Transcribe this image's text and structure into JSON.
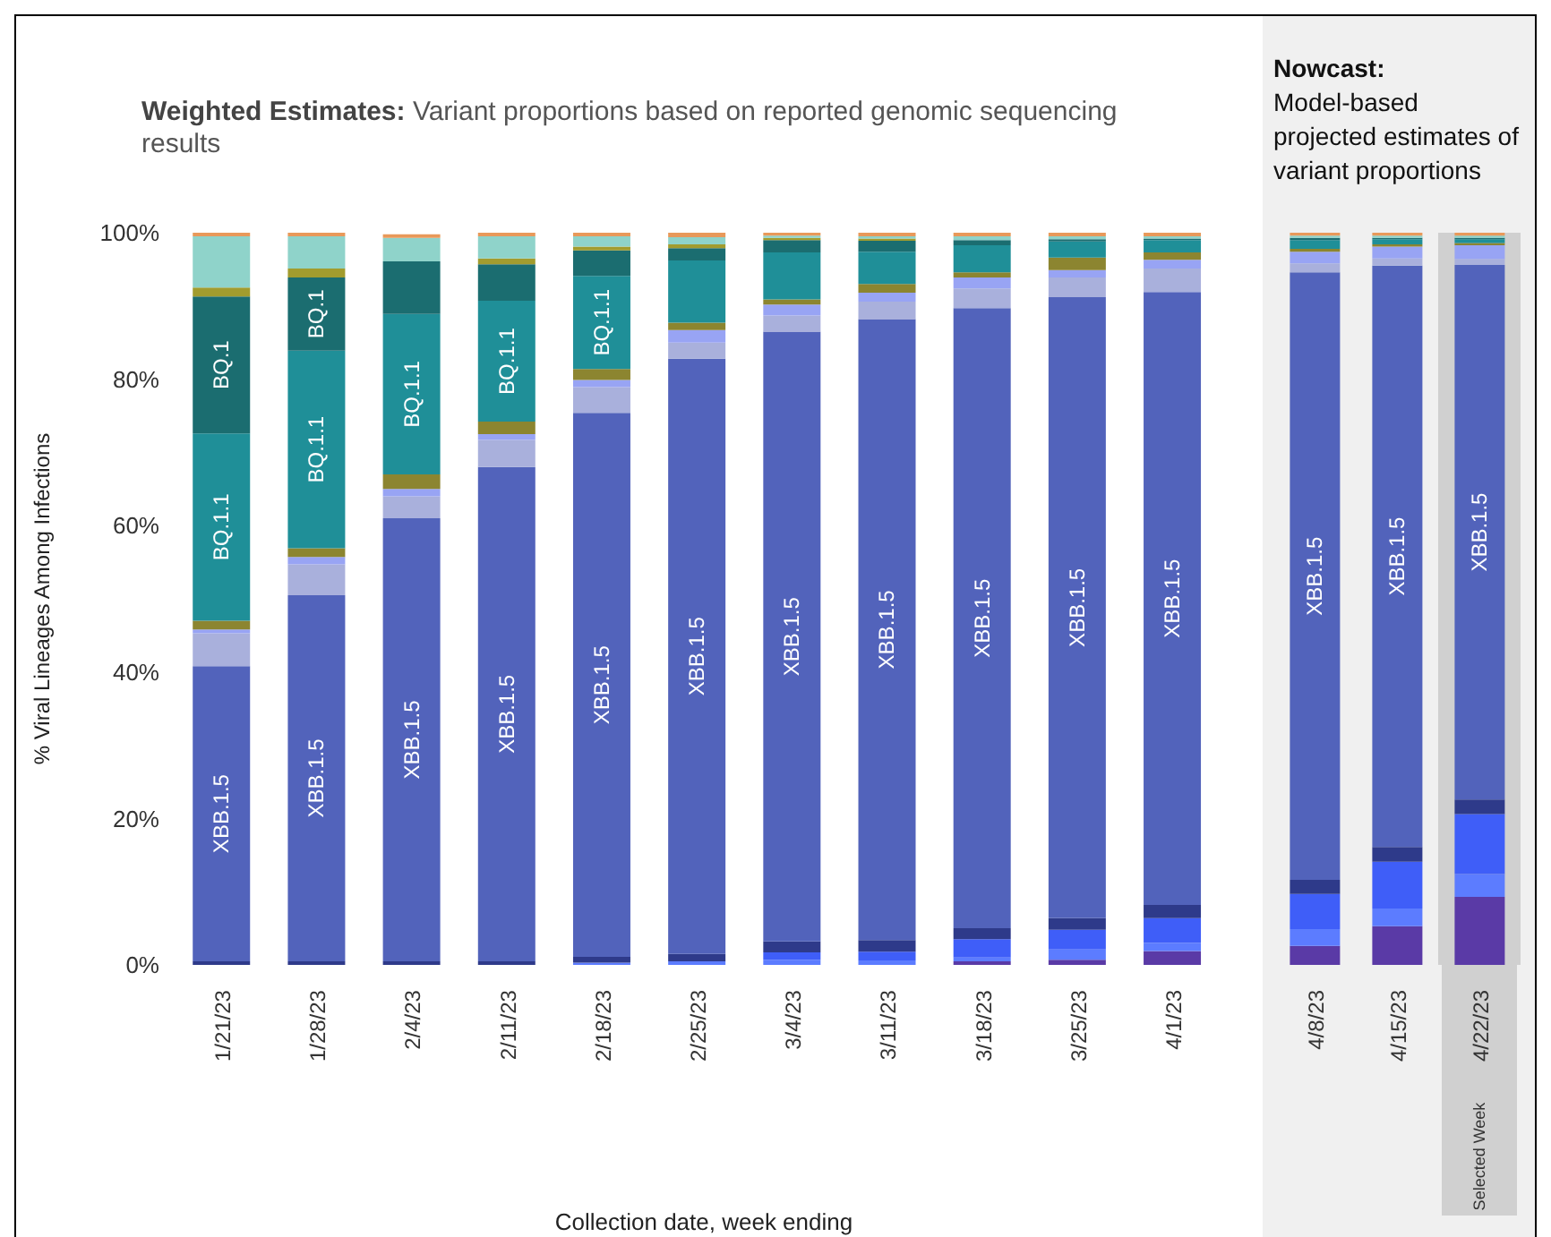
{
  "chart_data": [
    {
      "type": "bar",
      "stacked": true,
      "title": "Weighted Estimates:",
      "subtitle": "Variant proportions based on reported genomic sequencing results",
      "ylabel": "% Viral Lineages Among Infections",
      "xlabel": "Collection date, week ending",
      "categories": [
        "1/21/23",
        "1/28/23",
        "2/4/23",
        "2/11/23",
        "2/18/23",
        "2/25/23",
        "3/4/23",
        "3/11/23",
        "3/18/23",
        "3/25/23",
        "4/1/23"
      ],
      "ylim": [
        0,
        100
      ],
      "yticks": [
        {
          "value": 0,
          "label": "0%"
        },
        {
          "value": 20,
          "label": "20%"
        },
        {
          "value": 40,
          "label": "40%"
        },
        {
          "value": 60,
          "label": "60%"
        },
        {
          "value": 80,
          "label": "80%"
        },
        {
          "value": 100,
          "label": "100%"
        }
      ],
      "grid": false,
      "legend": false,
      "series": [
        {
          "color": "#5a3aa6",
          "values": [
            0,
            0,
            0,
            0,
            0,
            0,
            0,
            0,
            0.5,
            0.7,
            1.9
          ]
        },
        {
          "color": "#5c7cff",
          "values": [
            0,
            0,
            0,
            0,
            0.3,
            0.5,
            0.7,
            0.6,
            0.5,
            1.4,
            1.1
          ]
        },
        {
          "color": "#3f5ef8",
          "values": [
            0,
            0,
            0,
            0,
            0,
            0,
            1,
            1.2,
            2.5,
            2.7,
            3.4
          ]
        },
        {
          "color": "#2e3a8a",
          "values": [
            0.5,
            0.5,
            0.5,
            0.5,
            0.8,
            1,
            1.5,
            1.6,
            1.5,
            1.6,
            1.8
          ]
        },
        {
          "name": "XBB.1.5",
          "color": "#5263bb",
          "values": [
            40.3,
            50,
            60.5,
            67.5,
            74.3,
            81.3,
            83.3,
            84.8,
            84.7,
            84.8,
            83.7
          ]
        },
        {
          "color": "#a9b0dc",
          "values": [
            4.5,
            4.2,
            3,
            3.7,
            3.5,
            2.2,
            2.2,
            2.4,
            2.7,
            2.7,
            3.2
          ]
        },
        {
          "color": "#98a4f4",
          "values": [
            0.5,
            1,
            1,
            0.8,
            1,
            1.7,
            1.5,
            1.2,
            1.5,
            1,
            1.2
          ]
        },
        {
          "color": "#8c8530",
          "values": [
            1.2,
            1.2,
            2,
            1.7,
            1.5,
            1,
            0.7,
            1.2,
            0.7,
            1.7,
            1
          ]
        },
        {
          "name": "BQ.1.1",
          "color": "#1f8f98",
          "values": [
            25.6,
            27,
            21.9,
            16.5,
            12.7,
            8.5,
            6.4,
            4.4,
            3.7,
            2.2,
            1.7
          ]
        },
        {
          "name": "BQ.1",
          "color": "#1b6d70",
          "values": [
            18.7,
            10,
            7.2,
            5,
            3.5,
            1.7,
            1.7,
            1.5,
            0.7,
            0.3,
            0.2
          ]
        },
        {
          "color": "#a29c2e",
          "values": [
            1.2,
            1.2,
            0,
            0.8,
            0.5,
            0.5,
            0.3,
            0.3,
            0,
            0,
            0
          ]
        },
        {
          "color": "#8fd3ca",
          "values": [
            7,
            4.4,
            3.2,
            3,
            1.4,
            1,
            0.3,
            0.3,
            0.5,
            0.4,
            0.3
          ]
        },
        {
          "color": "#e8995a",
          "values": [
            0.5,
            0.5,
            0.5,
            0.5,
            0.5,
            0.6,
            0.4,
            0.5,
            0.5,
            0.5,
            0.5
          ]
        }
      ]
    },
    {
      "type": "bar",
      "stacked": true,
      "title": "Nowcast:",
      "subtitle": "Model-based projected estimates of variant proportions",
      "categories": [
        "4/8/23",
        "4/15/23",
        "4/22/23"
      ],
      "ylim": [
        0,
        100
      ],
      "tick_labels": "x",
      "grid": false,
      "legend": false,
      "bands": [
        {
          "axis": "x",
          "from": "4/22/23",
          "to": "4/22/23",
          "color": "#d0d0d0"
        }
      ],
      "annotations": [
        "Selected Week"
      ],
      "series": [
        {
          "color": "#5a3aa6",
          "values": [
            2.6,
            5.3,
            9.3
          ]
        },
        {
          "color": "#5c7cff",
          "values": [
            2.3,
            2.4,
            3.1
          ]
        },
        {
          "color": "#3f5ef8",
          "values": [
            4.8,
            6.4,
            8.2
          ]
        },
        {
          "color": "#2e3a8a",
          "values": [
            1.9,
            2,
            2
          ]
        },
        {
          "name": "XBB.1.5",
          "color": "#5263bb",
          "values": [
            83,
            79.4,
            73
          ]
        },
        {
          "color": "#a9b0dc",
          "values": [
            1.2,
            1,
            0.8
          ]
        },
        {
          "color": "#98a4f4",
          "values": [
            1.6,
            1.6,
            1.9
          ]
        },
        {
          "color": "#8c8530",
          "values": [
            0.4,
            0.3,
            0.3
          ]
        },
        {
          "color": "#1f8f98",
          "values": [
            1.2,
            0.7,
            0.5
          ]
        },
        {
          "color": "#1b6d70",
          "values": [
            0.3,
            0.2,
            0.2
          ]
        },
        {
          "color": "#8fd3ca",
          "values": [
            0.3,
            0.3,
            0.3
          ]
        },
        {
          "color": "#e8995a",
          "values": [
            0.4,
            0.4,
            0.4
          ]
        }
      ]
    }
  ]
}
